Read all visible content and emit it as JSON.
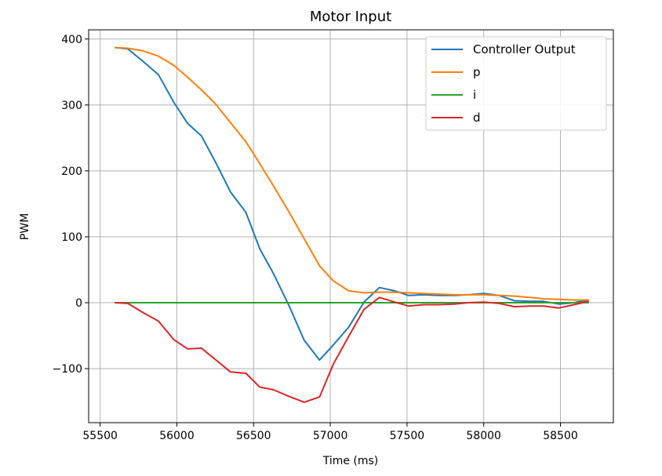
{
  "chart_data": {
    "type": "line",
    "title": "Motor Input",
    "xlabel": "Time (ms)",
    "ylabel": "PWM",
    "xlim": [
      55425,
      58845
    ],
    "ylim": [
      -182,
      414
    ],
    "xticks": [
      55500,
      56000,
      56500,
      57000,
      57500,
      58000,
      58500
    ],
    "xtick_labels": [
      "55500",
      "56000",
      "56500",
      "57000",
      "57500",
      "58000",
      "58500"
    ],
    "yticks": [
      -100,
      0,
      100,
      200,
      300,
      400
    ],
    "ytick_labels": [
      "−100",
      "0",
      "100",
      "200",
      "300",
      "400"
    ],
    "grid": true,
    "legend_position": "upper right",
    "series": [
      {
        "name": "Controller Output",
        "color": "#1f77b4",
        "points": [
          [
            55600,
            387
          ],
          [
            55680,
            385
          ],
          [
            55780,
            366
          ],
          [
            55880,
            346
          ],
          [
            55980,
            304
          ],
          [
            56070,
            272
          ],
          [
            56160,
            253
          ],
          [
            56250,
            214
          ],
          [
            56350,
            168
          ],
          [
            56450,
            137
          ],
          [
            56540,
            82
          ],
          [
            56630,
            44
          ],
          [
            56730,
            -4
          ],
          [
            56830,
            -57
          ],
          [
            56930,
            -87
          ],
          [
            57020,
            -64
          ],
          [
            57120,
            -37
          ],
          [
            57220,
            1
          ],
          [
            57320,
            23
          ],
          [
            57420,
            18
          ],
          [
            57510,
            11
          ],
          [
            57610,
            12
          ],
          [
            57710,
            11
          ],
          [
            57810,
            11
          ],
          [
            57900,
            12
          ],
          [
            58000,
            14
          ],
          [
            58100,
            11
          ],
          [
            58200,
            3
          ],
          [
            58300,
            2
          ],
          [
            58390,
            2
          ],
          [
            58490,
            -2
          ],
          [
            58590,
            0
          ],
          [
            58680,
            4
          ]
        ]
      },
      {
        "name": "p",
        "color": "#ff7f0e",
        "points": [
          [
            55600,
            387
          ],
          [
            55680,
            386
          ],
          [
            55780,
            382
          ],
          [
            55880,
            374
          ],
          [
            55980,
            360
          ],
          [
            56070,
            342
          ],
          [
            56160,
            323
          ],
          [
            56250,
            302
          ],
          [
            56350,
            273
          ],
          [
            56450,
            244
          ],
          [
            56540,
            211
          ],
          [
            56630,
            177
          ],
          [
            56730,
            138
          ],
          [
            56830,
            97
          ],
          [
            56930,
            56
          ],
          [
            57020,
            33
          ],
          [
            57120,
            18
          ],
          [
            57220,
            15
          ],
          [
            57320,
            16
          ],
          [
            57420,
            16
          ],
          [
            57510,
            15
          ],
          [
            57610,
            14
          ],
          [
            57710,
            13
          ],
          [
            57810,
            12
          ],
          [
            57900,
            12
          ],
          [
            58000,
            12
          ],
          [
            58100,
            11
          ],
          [
            58200,
            10
          ],
          [
            58300,
            8
          ],
          [
            58390,
            6
          ],
          [
            58490,
            5
          ],
          [
            58590,
            4
          ],
          [
            58680,
            4
          ]
        ]
      },
      {
        "name": "i",
        "color": "#2ca02c",
        "points": [
          [
            55600,
            0
          ],
          [
            58680,
            0
          ]
        ]
      },
      {
        "name": "d",
        "color": "#d62728",
        "points": [
          [
            55600,
            0
          ],
          [
            55680,
            -1
          ],
          [
            55780,
            -15
          ],
          [
            55880,
            -28
          ],
          [
            55980,
            -56
          ],
          [
            56070,
            -70
          ],
          [
            56160,
            -69
          ],
          [
            56250,
            -86
          ],
          [
            56350,
            -105
          ],
          [
            56450,
            -107
          ],
          [
            56540,
            -128
          ],
          [
            56630,
            -132
          ],
          [
            56730,
            -142
          ],
          [
            56830,
            -151
          ],
          [
            56930,
            -143
          ],
          [
            57020,
            -93
          ],
          [
            57120,
            -51
          ],
          [
            57220,
            -10
          ],
          [
            57320,
            8
          ],
          [
            57420,
            1
          ],
          [
            57510,
            -5
          ],
          [
            57610,
            -3
          ],
          [
            57710,
            -3
          ],
          [
            57810,
            -2
          ],
          [
            57900,
            0
          ],
          [
            58000,
            1
          ],
          [
            58100,
            -1
          ],
          [
            58200,
            -6
          ],
          [
            58300,
            -5
          ],
          [
            58390,
            -5
          ],
          [
            58490,
            -8
          ],
          [
            58590,
            -3
          ],
          [
            58680,
            2
          ]
        ]
      }
    ]
  }
}
